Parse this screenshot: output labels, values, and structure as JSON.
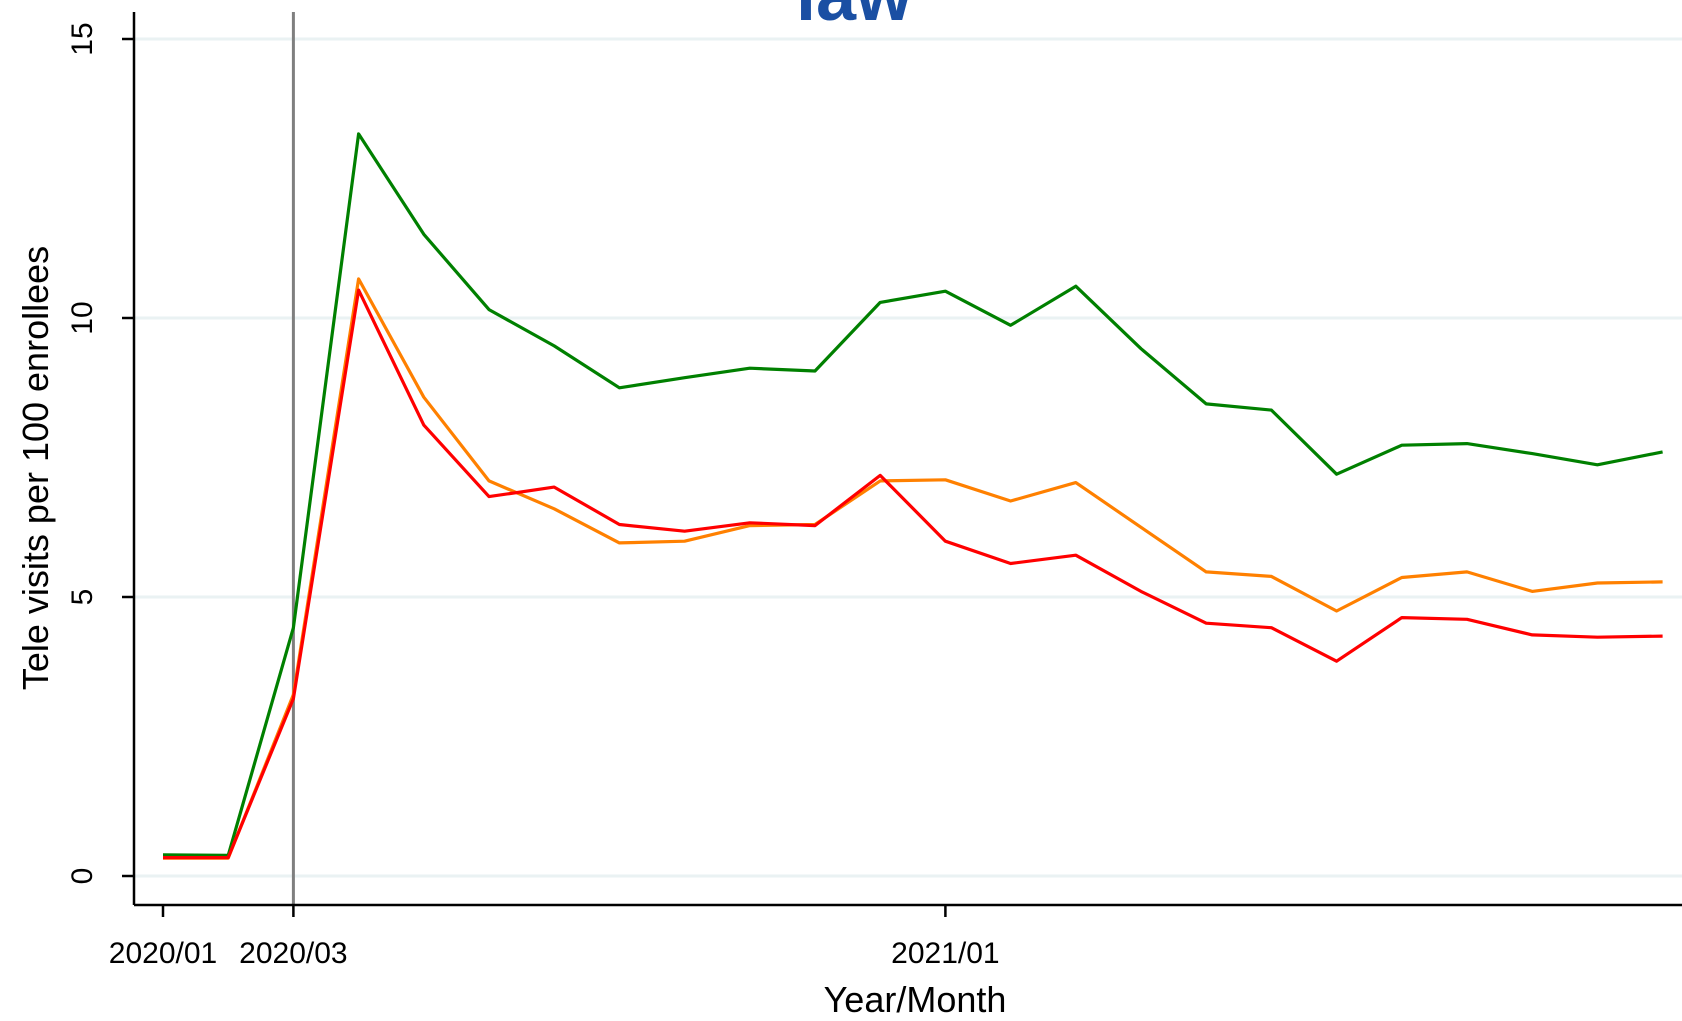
{
  "chart_data": {
    "type": "line",
    "title": "law",
    "xlabel": "Year/Month",
    "ylabel": "Tele visits per 100 enrollees",
    "ylim": [
      0,
      15
    ],
    "xlim": [
      "2020/01",
      "2021/12"
    ],
    "x_ticks": [
      "2020/01",
      "2020/03",
      "2021/01"
    ],
    "y_ticks": [
      0,
      5,
      10,
      15
    ],
    "reference_line_x": "2020/03",
    "grid": true,
    "legend": "none",
    "x": [
      "2020/01",
      "2020/02",
      "2020/03",
      "2020/04",
      "2020/05",
      "2020/06",
      "2020/07",
      "2020/08",
      "2020/09",
      "2020/10",
      "2020/11",
      "2020/12",
      "2021/01",
      "2021/02",
      "2021/03",
      "2021/04",
      "2021/05",
      "2021/06",
      "2021/07",
      "2021/08",
      "2021/09",
      "2021/10",
      "2021/11",
      "2021/12"
    ],
    "series": [
      {
        "color": "#008000",
        "values": [
          0.38,
          0.37,
          4.45,
          13.3,
          11.5,
          10.15,
          9.5,
          8.75,
          8.93,
          9.1,
          9.05,
          10.28,
          10.48,
          9.87,
          10.57,
          9.45,
          8.46,
          8.35,
          7.2,
          7.72,
          7.75,
          7.57,
          7.37,
          7.6
        ]
      },
      {
        "color": "#FF8000",
        "values": [
          0.32,
          0.32,
          3.25,
          10.7,
          8.58,
          7.08,
          6.58,
          5.97,
          6.0,
          6.28,
          6.3,
          7.08,
          7.1,
          6.72,
          7.05,
          6.25,
          5.45,
          5.37,
          4.75,
          5.35,
          5.45,
          5.1,
          5.25,
          5.27
        ]
      },
      {
        "color": "#FF0000",
        "values": [
          0.33,
          0.33,
          3.18,
          10.5,
          8.08,
          6.8,
          6.97,
          6.3,
          6.18,
          6.33,
          6.28,
          7.18,
          6.0,
          5.6,
          5.75,
          5.1,
          4.53,
          4.45,
          3.85,
          4.63,
          4.6,
          4.32,
          4.28,
          4.3
        ]
      }
    ]
  }
}
